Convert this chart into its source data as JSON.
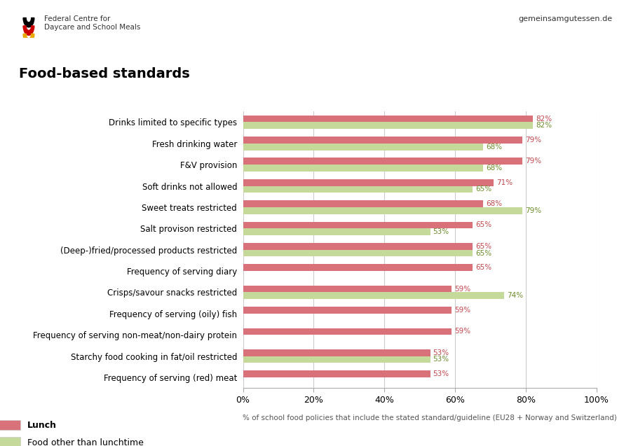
{
  "title": "Food-based standards",
  "categories_display": [
    "Drinks limited to specific types",
    "Fresh drinking water",
    "F&V provision",
    "Soft drinks not allowed",
    "Sweet treats restricted",
    "Salt provison restricted",
    "(Deep-)fried/processed products restricted",
    "Frequency of serving diary",
    "Crisps/savour snacks restricted",
    "Frequency of serving (oily) fish",
    "Frequency of serving non-meat/non-dairy protein",
    "Starchy food cooking in fat/oil restricted",
    "Frequency of serving (red) meat"
  ],
  "lunch_values": [
    82,
    79,
    79,
    71,
    68,
    65,
    65,
    65,
    59,
    59,
    59,
    53,
    53
  ],
  "other_values": [
    82,
    68,
    68,
    65,
    79,
    53,
    65,
    null,
    74,
    null,
    null,
    53,
    null
  ],
  "lunch_color": "#d9717a",
  "other_color": "#c5d99a",
  "bar_height": 0.32,
  "xlim": [
    0,
    100
  ],
  "xtick_labels": [
    "0%",
    "20%",
    "40%",
    "60%",
    "80%",
    "100%"
  ],
  "xtick_values": [
    0,
    20,
    40,
    60,
    80,
    100
  ],
  "legend_lunch": "Lunch",
  "legend_other": "Food other than lunchtime",
  "note": "% of school food policies that include the stated standard/guideline (EU28 + Norway and Switzerland)",
  "header_text": "Federal Centre for\nDaycare and School Meals",
  "website": "gemeinsamgutessen.de",
  "label_color_lunch": "#c0464e",
  "label_color_other": "#6b8c2a",
  "grid_color": "#cccccc",
  "spine_color": "#aaaaaa"
}
